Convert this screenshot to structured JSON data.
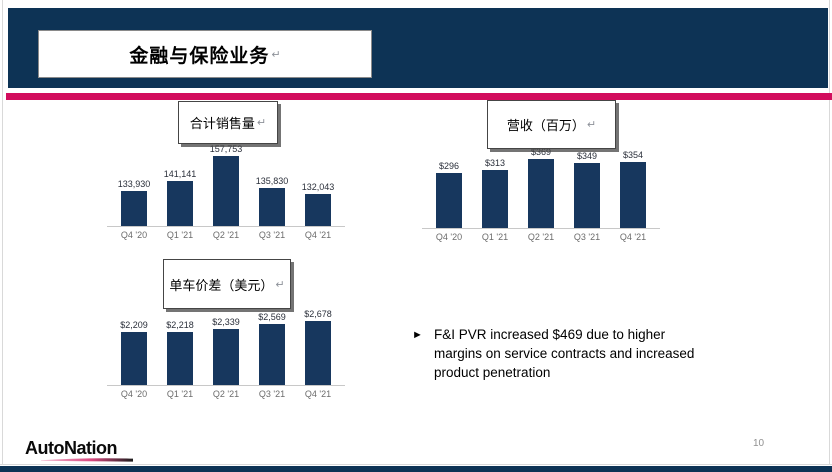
{
  "header": {
    "title": "金融与保险业务",
    "return_mark": "↵"
  },
  "footer": {
    "logo_text": "AutoNation",
    "page_number": "10"
  },
  "bullet": {
    "marker": "►",
    "lines": [
      "F&I PVR increased $469 due to higher",
      "margins on service contracts and increased",
      "product penetration"
    ]
  },
  "colors": {
    "header_navy": "#0d3355",
    "bar_navy": "#17375e",
    "accent_pink": "#d20d5d",
    "category_gray": "#6c6c6c"
  },
  "chart_data": [
    {
      "type": "bar",
      "title": "合计销售量",
      "return_mark": "↵",
      "categories": [
        "Q4 '20",
        "Q1 '21",
        "Q2 '21",
        "Q3 '21",
        "Q4 '21"
      ],
      "values": [
        133930,
        141141,
        157753,
        135830,
        132043
      ],
      "labels": [
        "133,930",
        "141,141",
        "157,753",
        "135,830",
        "132,043"
      ],
      "ylim": [
        110000,
        158000
      ],
      "xlabel": "",
      "ylabel": "",
      "grid": false,
      "legend": false
    },
    {
      "type": "bar",
      "title": "营收（百万）",
      "return_mark": "↵",
      "categories": [
        "Q4 '20",
        "Q1 '21",
        "Q2 '21",
        "Q3 '21",
        "Q4 '21"
      ],
      "values": [
        296,
        313,
        369,
        349,
        354
      ],
      "labels": [
        "$296",
        "$313",
        "$369",
        "$349",
        "$354"
      ],
      "ylim": [
        0,
        369
      ],
      "xlabel": "",
      "ylabel": "",
      "grid": false,
      "legend": false
    },
    {
      "type": "bar",
      "title": "单车价差（美元）",
      "return_mark": "↵",
      "categories": [
        "Q4 '20",
        "Q1 '21",
        "Q2 '21",
        "Q3 '21",
        "Q4 '21"
      ],
      "values": [
        2209,
        2218,
        2339,
        2569,
        2678
      ],
      "labels": [
        "$2,209",
        "$2,218",
        "$2,339",
        "$2,569",
        "$2,678"
      ],
      "ylim": [
        0,
        2678
      ],
      "xlabel": "",
      "ylabel": "",
      "grid": false,
      "legend": false
    }
  ]
}
